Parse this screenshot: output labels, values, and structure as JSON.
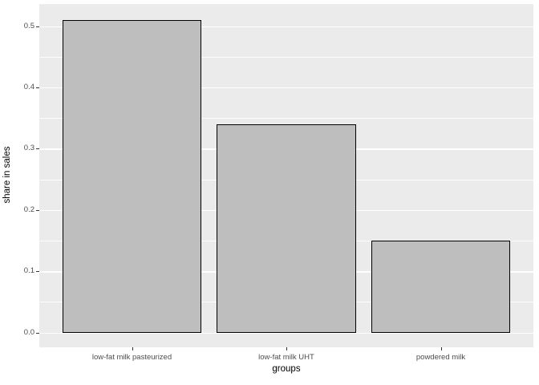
{
  "chart_data": {
    "type": "bar",
    "title": "",
    "categories": [
      "low-fat milk pasteurized",
      "low-fat milk UHT",
      "powdered milk"
    ],
    "values": [
      0.51,
      0.34,
      0.15
    ],
    "xlabel": "groups",
    "ylabel": "share in sales",
    "y_ticks": [
      0.0,
      0.1,
      0.2,
      0.3,
      0.4,
      0.5
    ],
    "y_tick_labels": [
      "0.0",
      "0.1",
      "0.2",
      "0.3",
      "0.4",
      "0.5"
    ],
    "y_minor_ticks": [
      0.05,
      0.15,
      0.25,
      0.35,
      0.45,
      0.55
    ],
    "ylim": [
      -0.024,
      0.536
    ],
    "grid": true,
    "legend_position": "none",
    "colors": {
      "panel_background": "#EBEBEB",
      "gridline": "#FFFFFF",
      "bar_fill": "#BEBEBE",
      "bar_border": "#000000",
      "tick_label": "#4D4D4D",
      "tick_mark": "#333333",
      "axis_title": "#000000",
      "page_background": "#FFFFFF"
    }
  }
}
